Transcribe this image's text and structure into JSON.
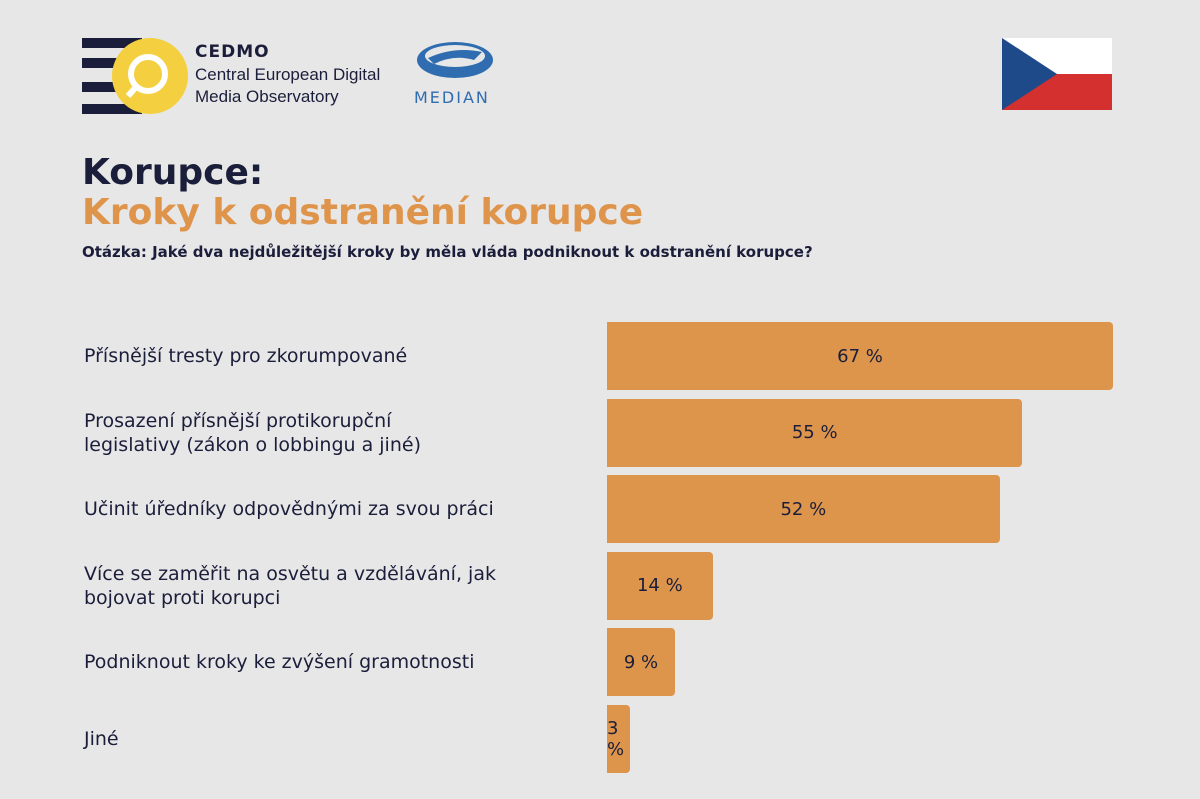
{
  "logos": {
    "cedmo_name": "CEDMO",
    "cedmo_full": "Central European Digital\nMedia Observatory",
    "median": "MEDIAN"
  },
  "chart_data": {
    "type": "hbar",
    "title": "Korupce:",
    "subtitle": "Kroky k odstranění korupce",
    "question": "Otázka: Jaké dva nejdůležitější kroky by měla vláda podniknout k odstranění korupce?",
    "categories": [
      "Přísnější tresty pro zkorumpované",
      "Prosazení přísnější protikorupční\nlegislativy (zákon o lobbingu a jiné)",
      "Učinit úředníky odpovědnými za svou práci",
      "Více se zaměřit na osvětu a vzdělávání, jak\nbojovat proti korupci",
      "Podniknout kroky ke zvýšení gramotnosti",
      "Jiné"
    ],
    "values": [
      67,
      55,
      52,
      14,
      9,
      3
    ],
    "value_labels": [
      "67 %",
      "55 %",
      "52 %",
      "14 %",
      "9 %",
      "3 %"
    ],
    "color": "#dd944b"
  }
}
